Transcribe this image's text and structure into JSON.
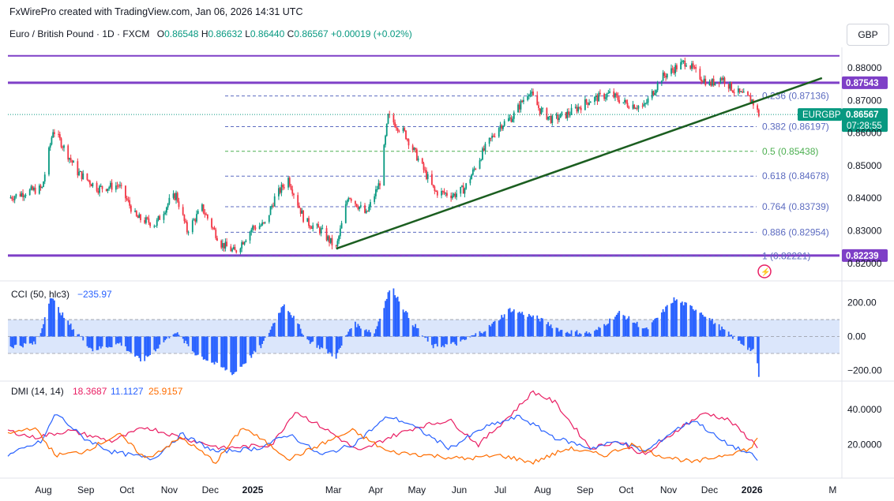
{
  "header": {
    "credit": "FxWirePro created with TradingView.com, Jan 06, 2026 14:31 UTC",
    "symbol": "Euro / British Pound · 1D · FXCM",
    "open_label": "O",
    "open": "0.86548",
    "high_label": "H",
    "high": "0.86632",
    "low_label": "L",
    "low": "0.86440",
    "close_label": "C",
    "close": "0.86567",
    "change": "+0.00019 (+0.02%)",
    "currency": "GBP"
  },
  "colors": {
    "up": "#089981",
    "down": "#f23645",
    "resistance": "#7e3fc7",
    "trendline": "#1b5e20",
    "fib": "#5c6bc0",
    "fib_half": "#4caf50",
    "cci": "#2962ff",
    "cci_band": "#dbe6fb",
    "dmi_plus": "#2962ff",
    "dmi_minus": "#ff6d00",
    "adx": "#e91e63",
    "price_tag": "#089981"
  },
  "chart_data": [
    {
      "type": "candlestick",
      "title": "Euro / British Pound · 1D · FXCM",
      "y_axis_ticks": [
        "0.88000",
        "0.87000",
        "0.86000",
        "0.85000",
        "0.84000",
        "0.83000",
        "0.82000"
      ],
      "ylim": [
        0.8185,
        0.8875
      ],
      "x_axis_ticks": [
        "Aug",
        "Sep",
        "Oct",
        "Nov",
        "Dec",
        "2025",
        "Mar",
        "Apr",
        "May",
        "Jun",
        "Jul",
        "Aug",
        "Sep",
        "Oct",
        "Nov",
        "Dec",
        "2026",
        "M"
      ],
      "x_range": [
        "2024-07-06",
        "2026-03-06"
      ],
      "close_path": [
        [
          "2024-07-06",
          0.84
        ],
        [
          "2024-07-20",
          0.842
        ],
        [
          "2024-07-31",
          0.843
        ],
        [
          "2024-08-08",
          0.861
        ],
        [
          "2024-08-14",
          0.857
        ],
        [
          "2024-08-26",
          0.848
        ],
        [
          "2024-09-10",
          0.843
        ],
        [
          "2024-09-25",
          0.844
        ],
        [
          "2024-10-08",
          0.834
        ],
        [
          "2024-10-22",
          0.832
        ],
        [
          "2024-11-01",
          0.839
        ],
        [
          "2024-11-06",
          0.841
        ],
        [
          "2024-11-14",
          0.83
        ],
        [
          "2024-11-25",
          0.837
        ],
        [
          "2024-12-09",
          0.826
        ],
        [
          "2024-12-19",
          0.8235
        ],
        [
          "2025-01-01",
          0.831
        ],
        [
          "2025-01-10",
          0.832
        ],
        [
          "2025-01-17",
          0.84
        ],
        [
          "2025-01-27",
          0.846
        ],
        [
          "2025-02-08",
          0.833
        ],
        [
          "2025-02-20",
          0.83
        ],
        [
          "2025-03-03",
          0.8245
        ],
        [
          "2025-03-12",
          0.841
        ],
        [
          "2025-03-25",
          0.835
        ],
        [
          "2025-04-04",
          0.845
        ],
        [
          "2025-04-10",
          0.865
        ],
        [
          "2025-04-22",
          0.86
        ],
        [
          "2025-05-02",
          0.852
        ],
        [
          "2025-05-14",
          0.842
        ],
        [
          "2025-05-28",
          0.841
        ],
        [
          "2025-06-05",
          0.843
        ],
        [
          "2025-06-18",
          0.854
        ],
        [
          "2025-06-30",
          0.862
        ],
        [
          "2025-07-10",
          0.865
        ],
        [
          "2025-07-22",
          0.873
        ],
        [
          "2025-07-30",
          0.867
        ],
        [
          "2025-08-08",
          0.864
        ],
        [
          "2025-08-20",
          0.866
        ],
        [
          "2025-09-04",
          0.87
        ],
        [
          "2025-09-19",
          0.872
        ],
        [
          "2025-10-01",
          0.869
        ],
        [
          "2025-10-14",
          0.868
        ],
        [
          "2025-10-27",
          0.877
        ],
        [
          "2025-11-06",
          0.88
        ],
        [
          "2025-11-14",
          0.882
        ],
        [
          "2025-11-22",
          0.878
        ],
        [
          "2025-12-01",
          0.875
        ],
        [
          "2025-12-10",
          0.877
        ],
        [
          "2025-12-19",
          0.873
        ],
        [
          "2026-01-01",
          0.87
        ],
        [
          "2026-01-06",
          0.8657
        ]
      ],
      "horizontal_lines": [
        {
          "value": 0.87543,
          "label": "0.87543"
        },
        {
          "value": 0.82239,
          "label": "0.82239"
        }
      ],
      "fibonacci": [
        {
          "ratio": "0.236",
          "value": "0.87136"
        },
        {
          "ratio": "0.382",
          "value": "0.86197"
        },
        {
          "ratio": "0.5",
          "value": "0.85438"
        },
        {
          "ratio": "0.618",
          "value": "0.84678"
        },
        {
          "ratio": "0.764",
          "value": "0.83739"
        },
        {
          "ratio": "0.886",
          "value": "0.82954"
        },
        {
          "ratio": "1",
          "value": "0.82221"
        }
      ],
      "trendline": [
        [
          "2025-03-03",
          0.8245
        ],
        [
          "2026-01-06",
          0.8708
        ]
      ],
      "last_price": {
        "label": "EURGBP",
        "value": "0.86567",
        "countdown": "07:28:55"
      }
    },
    {
      "type": "bar",
      "title": "CCI (50, hlc3)",
      "value_label": "−235.97",
      "y_axis_ticks": [
        "200.00",
        "0.00",
        "−200.00"
      ],
      "ylim": [
        -240,
        310
      ],
      "band": [
        -100,
        100
      ],
      "series_path": [
        [
          "2024-07-06",
          -60
        ],
        [
          "2024-07-28",
          -40
        ],
        [
          "2024-08-06",
          240
        ],
        [
          "2024-08-18",
          90
        ],
        [
          "2024-09-06",
          -80
        ],
        [
          "2024-09-26",
          -40
        ],
        [
          "2024-10-12",
          -150
        ],
        [
          "2024-11-05",
          30
        ],
        [
          "2024-11-20",
          -100
        ],
        [
          "2024-12-18",
          -220
        ],
        [
          "2025-01-08",
          -50
        ],
        [
          "2025-01-24",
          200
        ],
        [
          "2025-02-10",
          -20
        ],
        [
          "2025-03-03",
          -120
        ],
        [
          "2025-03-15",
          80
        ],
        [
          "2025-03-31",
          20
        ],
        [
          "2025-04-12",
          300
        ],
        [
          "2025-04-26",
          100
        ],
        [
          "2025-05-12",
          -60
        ],
        [
          "2025-06-01",
          -40
        ],
        [
          "2025-06-22",
          50
        ],
        [
          "2025-07-08",
          160
        ],
        [
          "2025-07-28",
          110
        ],
        [
          "2025-08-16",
          30
        ],
        [
          "2025-09-07",
          20
        ],
        [
          "2025-09-26",
          140
        ],
        [
          "2025-10-16",
          40
        ],
        [
          "2025-11-05",
          220
        ],
        [
          "2025-11-24",
          150
        ],
        [
          "2025-12-14",
          20
        ],
        [
          "2026-01-04",
          -100
        ],
        [
          "2026-01-06",
          -236
        ]
      ]
    },
    {
      "type": "line",
      "title": "DMI (14, 14)",
      "y_axis_ticks": [
        "40.0000",
        "20.0000"
      ],
      "ylim": [
        2,
        52
      ],
      "series": [
        {
          "name": "",
          "value_label": "18.3687",
          "color": "#e91e63",
          "path": [
            [
              "2024-07-06",
              28
            ],
            [
              "2024-07-25",
              24
            ],
            [
              "2024-08-20",
              28
            ],
            [
              "2024-09-20",
              22
            ],
            [
              "2024-10-15",
              30
            ],
            [
              "2024-11-10",
              24
            ],
            [
              "2024-12-10",
              18
            ],
            [
              "2025-01-15",
              20
            ],
            [
              "2025-02-01",
              39
            ],
            [
              "2025-02-25",
              28
            ],
            [
              "2025-03-20",
              16
            ],
            [
              "2025-04-10",
              24
            ],
            [
              "2025-05-01",
              30
            ],
            [
              "2025-05-25",
              34
            ],
            [
              "2025-06-15",
              20
            ],
            [
              "2025-07-10",
              38
            ],
            [
              "2025-07-25",
              50
            ],
            [
              "2025-08-10",
              44
            ],
            [
              "2025-09-05",
              18
            ],
            [
              "2025-09-25",
              22
            ],
            [
              "2025-10-15",
              14
            ],
            [
              "2025-11-10",
              30
            ],
            [
              "2025-11-28",
              38
            ],
            [
              "2025-12-15",
              34
            ],
            [
              "2026-01-01",
              22
            ],
            [
              "2026-01-06",
              18.37
            ]
          ]
        },
        {
          "name": "",
          "value_label": "11.1127",
          "color": "#2962ff",
          "path": [
            [
              "2024-07-06",
              14
            ],
            [
              "2024-07-31",
              22
            ],
            [
              "2024-08-10",
              38
            ],
            [
              "2024-08-30",
              24
            ],
            [
              "2024-09-20",
              16
            ],
            [
              "2024-10-20",
              12
            ],
            [
              "2024-11-10",
              26
            ],
            [
              "2024-12-05",
              16
            ],
            [
              "2025-01-05",
              18
            ],
            [
              "2025-01-28",
              26
            ],
            [
              "2025-02-20",
              14
            ],
            [
              "2025-03-15",
              20
            ],
            [
              "2025-04-10",
              36
            ],
            [
              "2025-04-25",
              32
            ],
            [
              "2025-05-25",
              18
            ],
            [
              "2025-06-20",
              30
            ],
            [
              "2025-07-15",
              36
            ],
            [
              "2025-08-10",
              24
            ],
            [
              "2025-09-05",
              18
            ],
            [
              "2025-09-25",
              22
            ],
            [
              "2025-10-15",
              16
            ],
            [
              "2025-11-05",
              28
            ],
            [
              "2025-11-20",
              34
            ],
            [
              "2025-12-10",
              22
            ],
            [
              "2026-01-01",
              14
            ],
            [
              "2026-01-06",
              11.11
            ]
          ]
        },
        {
          "name": "",
          "value_label": "25.9157",
          "color": "#ff6d00",
          "path": [
            [
              "2024-07-06",
              26
            ],
            [
              "2024-07-25",
              30
            ],
            [
              "2024-08-10",
              14
            ],
            [
              "2024-08-30",
              16
            ],
            [
              "2024-09-25",
              26
            ],
            [
              "2024-10-15",
              12
            ],
            [
              "2024-11-10",
              24
            ],
            [
              "2024-12-05",
              10
            ],
            [
              "2024-12-25",
              30
            ],
            [
              "2025-01-28",
              12
            ],
            [
              "2025-02-25",
              22
            ],
            [
              "2025-03-15",
              28
            ],
            [
              "2025-04-10",
              16
            ],
            [
              "2025-05-10",
              14
            ],
            [
              "2025-06-05",
              12
            ],
            [
              "2025-07-01",
              14
            ],
            [
              "2025-07-25",
              10
            ],
            [
              "2025-08-20",
              18
            ],
            [
              "2025-09-15",
              14
            ],
            [
              "2025-10-05",
              20
            ],
            [
              "2025-10-25",
              14
            ],
            [
              "2025-11-20",
              10
            ],
            [
              "2025-12-10",
              14
            ],
            [
              "2026-01-01",
              18
            ],
            [
              "2026-01-06",
              25.92
            ]
          ]
        }
      ]
    }
  ]
}
